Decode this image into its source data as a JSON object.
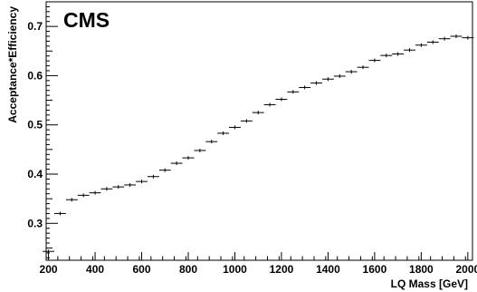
{
  "chart_data": {
    "type": "scatter",
    "title": "",
    "logo_text": "CMS",
    "xlabel": "LQ Mass [GeV]",
    "ylabel": "Acceptance*Efficiency",
    "xlim": [
      190,
      2020
    ],
    "ylim": [
      0.225,
      0.75
    ],
    "x_ticks": [
      200,
      400,
      600,
      800,
      1000,
      1200,
      1400,
      1600,
      1800,
      2000
    ],
    "x_tick_labels": [
      "200",
      "400",
      "600",
      "800",
      "1000",
      "1200",
      "1400",
      "1600",
      "1800",
      "2000"
    ],
    "y_ticks": [
      0.3,
      0.4,
      0.5,
      0.6,
      0.7
    ],
    "y_tick_labels": [
      "0.3",
      "0.4",
      "0.5",
      "0.6",
      "0.7"
    ],
    "grid": false,
    "legend": "none",
    "marker": "error-bar",
    "color": "#000000",
    "bin_half_width": 25,
    "series": [
      {
        "x": [
          200,
          250,
          300,
          350,
          400,
          450,
          500,
          550,
          600,
          650,
          700,
          750,
          800,
          850,
          900,
          950,
          1000,
          1050,
          1100,
          1150,
          1200,
          1250,
          1300,
          1350,
          1400,
          1450,
          1500,
          1550,
          1600,
          1650,
          1700,
          1750,
          1800,
          1850,
          1900,
          1950,
          2000
        ],
        "y": [
          0.243,
          0.32,
          0.348,
          0.357,
          0.362,
          0.37,
          0.374,
          0.378,
          0.385,
          0.395,
          0.408,
          0.422,
          0.433,
          0.448,
          0.466,
          0.483,
          0.495,
          0.508,
          0.525,
          0.541,
          0.552,
          0.567,
          0.576,
          0.585,
          0.593,
          0.599,
          0.608,
          0.617,
          0.631,
          0.641,
          0.644,
          0.652,
          0.662,
          0.668,
          0.675,
          0.68,
          0.677
        ]
      }
    ]
  }
}
